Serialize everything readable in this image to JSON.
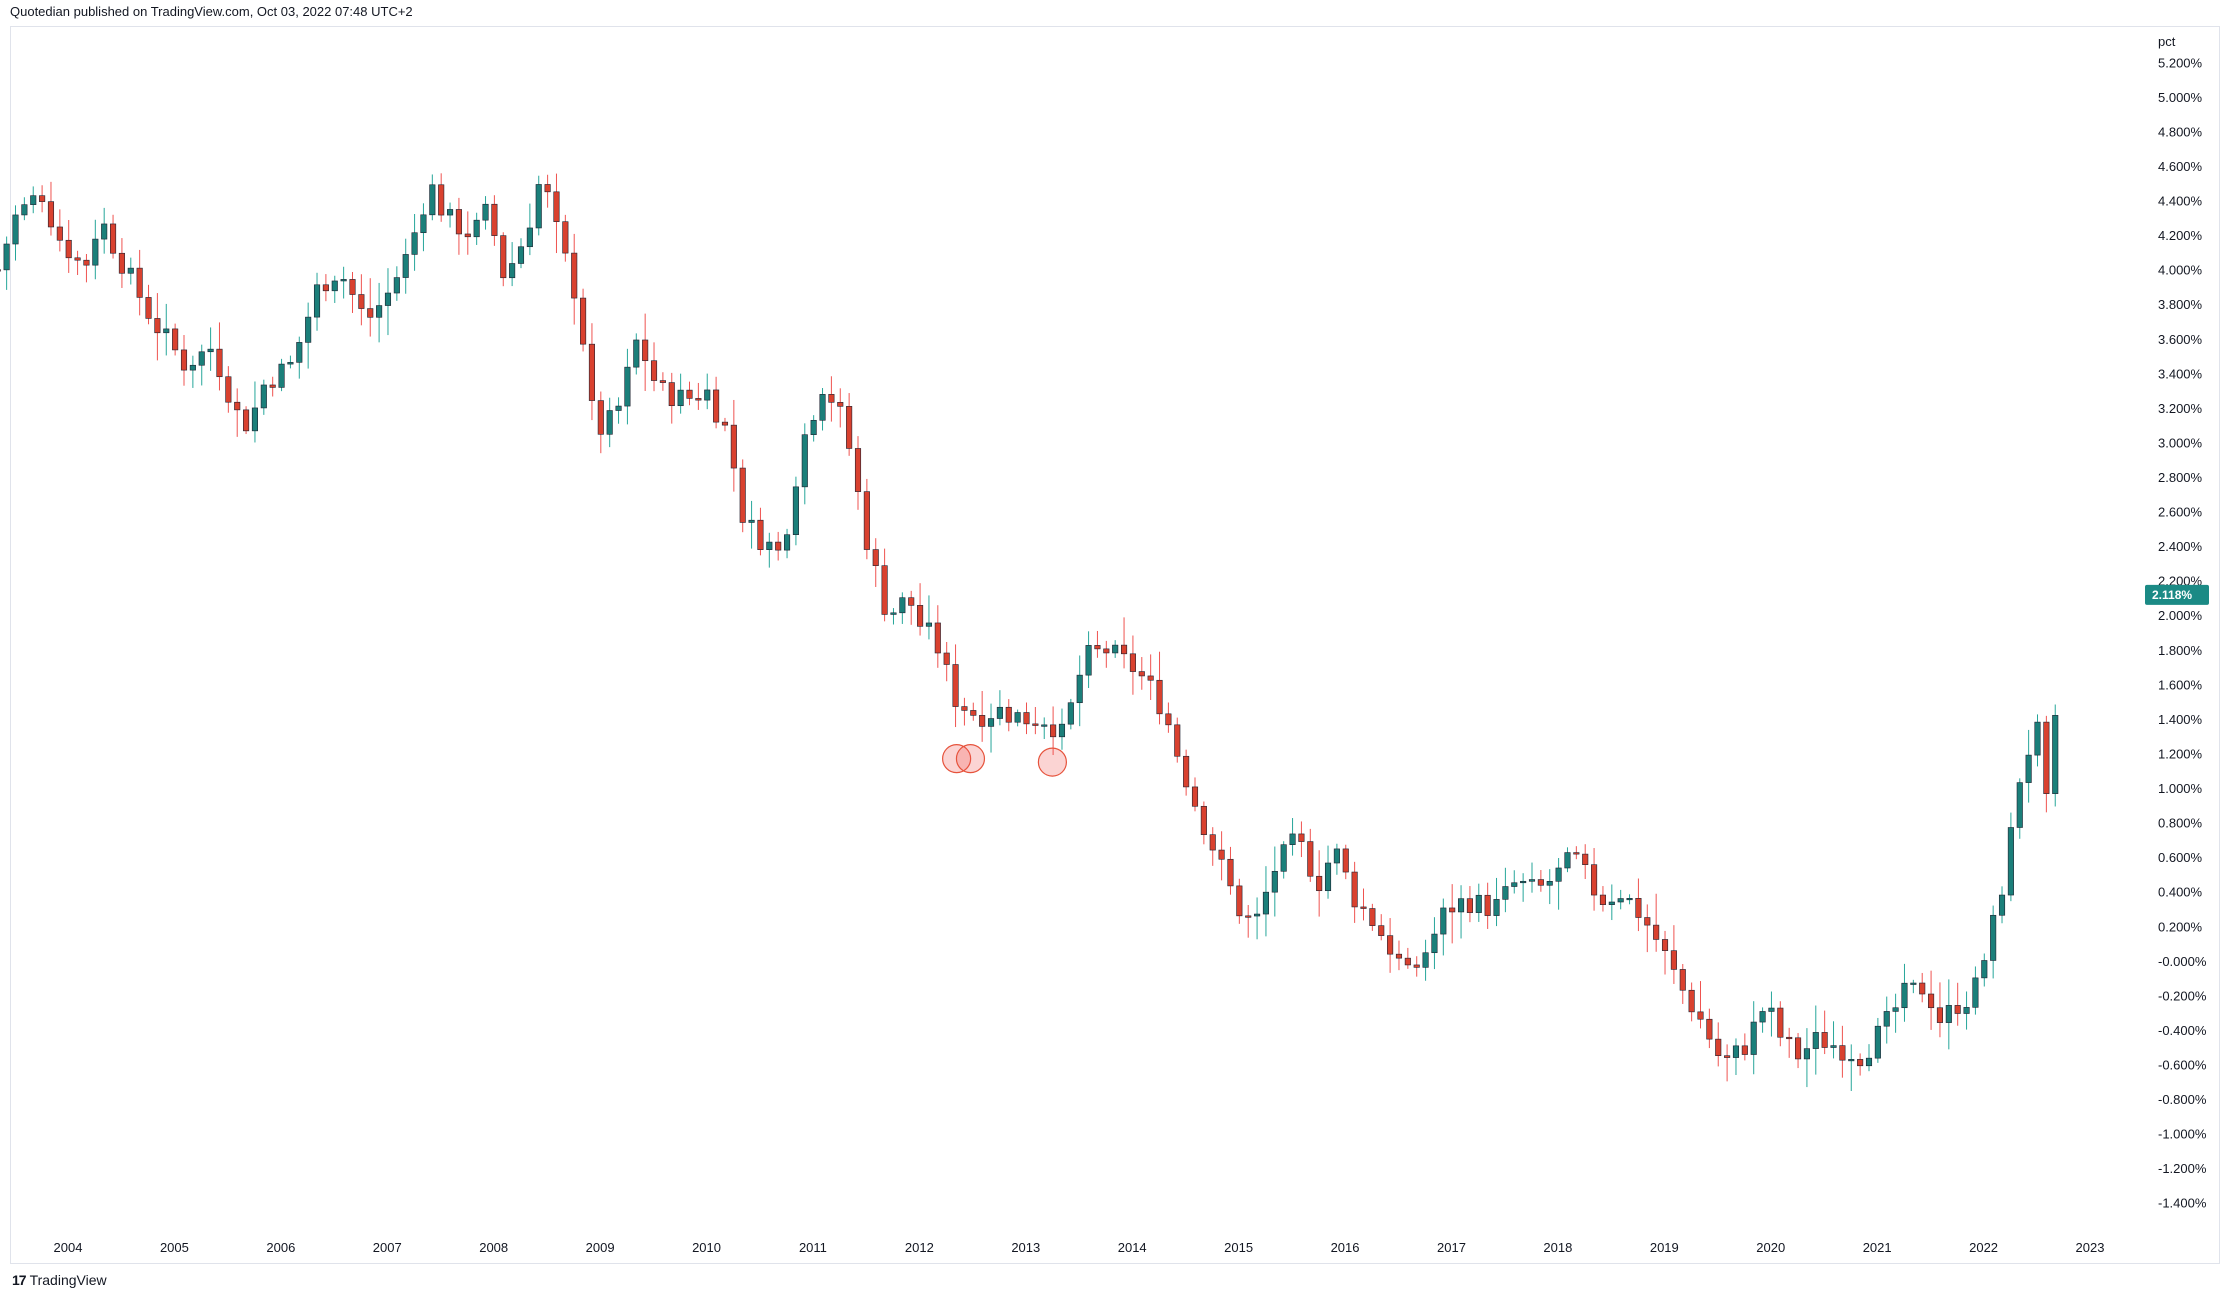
{
  "header": {
    "published_line": "Quotedian published on TradingView.com, Oct 03, 2022 07:48 UTC+2"
  },
  "footer": {
    "brand": "TradingView",
    "logo_glyph": "17"
  },
  "colors": {
    "up": "#26a69a",
    "up_fill": "#1b7f7a",
    "down": "#ef5350",
    "down_fill": "#d9412f",
    "last_price_bg": "#1b8a85",
    "marker_stroke": "#e6533c",
    "marker_fill": "rgba(239,83,80,0.25)"
  },
  "chart_data": {
    "type": "candlestick",
    "ylabel": "pct",
    "last_price_label": "2.118%",
    "last_price": 2.118,
    "ylim": [
      -1.5,
      5.3
    ],
    "xlim": [
      2003.3,
      2023.3
    ],
    "y_ticks": [
      {
        "v": 5.2,
        "label": "5.200%"
      },
      {
        "v": 5.0,
        "label": "5.000%"
      },
      {
        "v": 4.8,
        "label": "4.800%"
      },
      {
        "v": 4.6,
        "label": "4.600%"
      },
      {
        "v": 4.4,
        "label": "4.400%"
      },
      {
        "v": 4.2,
        "label": "4.200%"
      },
      {
        "v": 4.0,
        "label": "4.000%"
      },
      {
        "v": 3.8,
        "label": "3.800%"
      },
      {
        "v": 3.6,
        "label": "3.600%"
      },
      {
        "v": 3.4,
        "label": "3.400%"
      },
      {
        "v": 3.2,
        "label": "3.200%"
      },
      {
        "v": 3.0,
        "label": "3.000%"
      },
      {
        "v": 2.8,
        "label": "2.800%"
      },
      {
        "v": 2.6,
        "label": "2.600%"
      },
      {
        "v": 2.4,
        "label": "2.400%"
      },
      {
        "v": 2.2,
        "label": "2.200%"
      },
      {
        "v": 2.0,
        "label": "2.000%"
      },
      {
        "v": 1.8,
        "label": "1.800%"
      },
      {
        "v": 1.6,
        "label": "1.600%"
      },
      {
        "v": 1.4,
        "label": "1.400%"
      },
      {
        "v": 1.2,
        "label": "1.200%"
      },
      {
        "v": 1.0,
        "label": "1.000%"
      },
      {
        "v": 0.8,
        "label": "0.800%"
      },
      {
        "v": 0.6,
        "label": "0.600%"
      },
      {
        "v": 0.4,
        "label": "0.400%"
      },
      {
        "v": 0.2,
        "label": "0.200%"
      },
      {
        "v": 0.0,
        "label": "-0.000%"
      },
      {
        "v": -0.2,
        "label": "-0.200%"
      },
      {
        "v": -0.4,
        "label": "-0.400%"
      },
      {
        "v": -0.6,
        "label": "-0.600%"
      },
      {
        "v": -0.8,
        "label": "-0.800%"
      },
      {
        "v": -1.0,
        "label": "-1.000%"
      },
      {
        "v": -1.2,
        "label": "-1.200%"
      },
      {
        "v": -1.4,
        "label": "-1.400%"
      }
    ],
    "x_ticks": [
      "2004",
      "2005",
      "2006",
      "2007",
      "2008",
      "2009",
      "2010",
      "2011",
      "2012",
      "2013",
      "2014",
      "2015",
      "2016",
      "2017",
      "2018",
      "2019",
      "2020",
      "2021",
      "2022",
      "2023"
    ],
    "series_anchors": [
      [
        2003.34,
        4.0
      ],
      [
        2003.5,
        4.3
      ],
      [
        2003.75,
        4.45
      ],
      [
        2003.9,
        4.2
      ],
      [
        2004.15,
        4.0
      ],
      [
        2004.3,
        4.3
      ],
      [
        2004.5,
        4.05
      ],
      [
        2004.8,
        3.7
      ],
      [
        2005.1,
        3.45
      ],
      [
        2005.35,
        3.55
      ],
      [
        2005.6,
        3.15
      ],
      [
        2005.7,
        3.1
      ],
      [
        2005.85,
        3.35
      ],
      [
        2006.1,
        3.45
      ],
      [
        2006.35,
        3.9
      ],
      [
        2006.55,
        4.0
      ],
      [
        2006.8,
        3.7
      ],
      [
        2007.0,
        3.85
      ],
      [
        2007.2,
        4.1
      ],
      [
        2007.4,
        4.5
      ],
      [
        2007.55,
        4.3
      ],
      [
        2007.8,
        4.2
      ],
      [
        2007.95,
        4.35
      ],
      [
        2008.1,
        3.95
      ],
      [
        2008.3,
        4.2
      ],
      [
        2008.45,
        4.55
      ],
      [
        2008.6,
        4.2
      ],
      [
        2008.8,
        3.8
      ],
      [
        2008.95,
        3.05
      ],
      [
        2009.15,
        3.15
      ],
      [
        2009.35,
        3.6
      ],
      [
        2009.55,
        3.3
      ],
      [
        2009.8,
        3.25
      ],
      [
        2010.0,
        3.3
      ],
      [
        2010.2,
        3.05
      ],
      [
        2010.35,
        2.55
      ],
      [
        2010.5,
        2.45
      ],
      [
        2010.7,
        2.35
      ],
      [
        2010.9,
        3.0
      ],
      [
        2011.1,
        3.35
      ],
      [
        2011.3,
        3.1
      ],
      [
        2011.5,
        2.45
      ],
      [
        2011.7,
        2.0
      ],
      [
        2011.9,
        2.1
      ],
      [
        2012.0,
        1.95
      ],
      [
        2012.15,
        1.85
      ],
      [
        2012.35,
        1.5
      ],
      [
        2012.55,
        1.42
      ],
      [
        2012.75,
        1.45
      ],
      [
        2013.0,
        1.4
      ],
      [
        2013.2,
        1.4
      ],
      [
        2013.35,
        1.3
      ],
      [
        2013.55,
        1.75
      ],
      [
        2013.75,
        1.8
      ],
      [
        2014.0,
        1.7
      ],
      [
        2014.15,
        1.6
      ],
      [
        2014.3,
        1.45
      ],
      [
        2014.45,
        1.15
      ],
      [
        2014.6,
        0.9
      ],
      [
        2014.8,
        0.6
      ],
      [
        2015.0,
        0.3
      ],
      [
        2015.15,
        0.2
      ],
      [
        2015.35,
        0.55
      ],
      [
        2015.55,
        0.7
      ],
      [
        2015.75,
        0.45
      ],
      [
        2015.9,
        0.65
      ],
      [
        2016.1,
        0.35
      ],
      [
        2016.3,
        0.2
      ],
      [
        2016.45,
        0.05
      ],
      [
        2016.6,
        -0.1
      ],
      [
        2016.8,
        0.1
      ],
      [
        2016.95,
        0.3
      ],
      [
        2017.15,
        0.35
      ],
      [
        2017.4,
        0.3
      ],
      [
        2017.6,
        0.45
      ],
      [
        2017.8,
        0.4
      ],
      [
        2018.0,
        0.5
      ],
      [
        2018.15,
        0.6
      ],
      [
        2018.4,
        0.35
      ],
      [
        2018.6,
        0.4
      ],
      [
        2018.8,
        0.25
      ],
      [
        2018.95,
        0.1
      ],
      [
        2019.15,
        -0.15
      ],
      [
        2019.35,
        -0.35
      ],
      [
        2019.55,
        -0.6
      ],
      [
        2019.75,
        -0.5
      ],
      [
        2019.95,
        -0.25
      ],
      [
        2020.1,
        -0.45
      ],
      [
        2020.25,
        -0.55
      ],
      [
        2020.45,
        -0.45
      ],
      [
        2020.65,
        -0.5
      ],
      [
        2020.85,
        -0.55
      ],
      [
        2021.05,
        -0.4
      ],
      [
        2021.25,
        -0.2
      ],
      [
        2021.45,
        -0.15
      ],
      [
        2021.6,
        -0.35
      ],
      [
        2021.75,
        -0.25
      ],
      [
        2021.9,
        -0.2
      ],
      [
        2022.05,
        0.1
      ],
      [
        2022.2,
        0.5
      ],
      [
        2022.35,
        1.1
      ],
      [
        2022.5,
        1.35
      ],
      [
        2022.6,
        0.85
      ],
      [
        2022.7,
        1.55
      ],
      [
        2022.75,
        2.118
      ]
    ],
    "gap_range": [
      2014.35,
      2014.4
    ],
    "annotations": [
      {
        "shape": "circle",
        "x": 2012.35,
        "y": 1.17
      },
      {
        "shape": "circle",
        "x": 2012.48,
        "y": 1.17
      },
      {
        "shape": "circle",
        "x": 2013.25,
        "y": 1.15
      }
    ]
  }
}
